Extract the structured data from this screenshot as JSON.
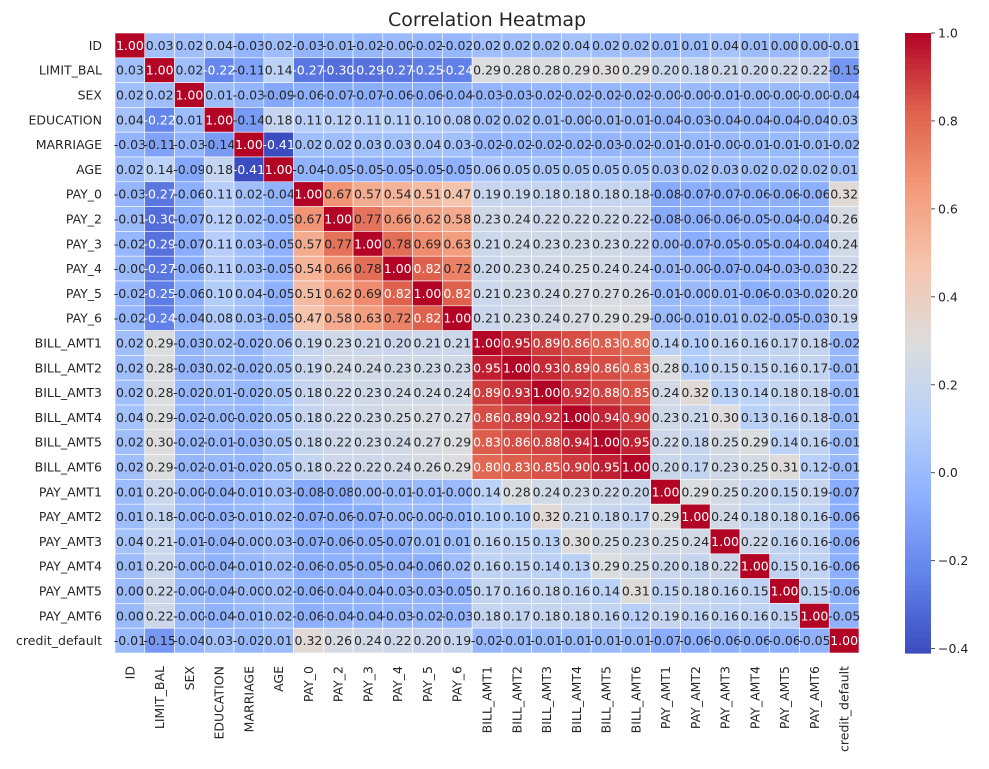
{
  "chart_data": {
    "type": "heatmap",
    "title": "Correlation Heatmap",
    "xlabel": "",
    "ylabel": "",
    "labels": [
      "ID",
      "LIMIT_BAL",
      "SEX",
      "EDUCATION",
      "MARRIAGE",
      "AGE",
      "PAY_0",
      "PAY_2",
      "PAY_3",
      "PAY_4",
      "PAY_5",
      "PAY_6",
      "BILL_AMT1",
      "BILL_AMT2",
      "BILL_AMT3",
      "BILL_AMT4",
      "BILL_AMT5",
      "BILL_AMT6",
      "PAY_AMT1",
      "PAY_AMT2",
      "PAY_AMT3",
      "PAY_AMT4",
      "PAY_AMT5",
      "PAY_AMT6",
      "credit_default"
    ],
    "cell_labels": [
      [
        "1.00",
        "0.03",
        "0.02",
        "0.04",
        "-0.03",
        "0.02",
        "-0.03",
        "-0.01",
        "-0.02",
        "-0.00",
        "-0.02",
        "-0.02",
        "0.02",
        "0.02",
        "0.02",
        "0.04",
        "0.02",
        "0.02",
        "0.01",
        "0.01",
        "0.04",
        "0.01",
        "0.00",
        "0.00",
        "-0.01"
      ],
      [
        "0.03",
        "1.00",
        "0.02",
        "-0.22",
        "-0.11",
        "0.14",
        "-0.27",
        "-0.30",
        "-0.29",
        "-0.27",
        "-0.25",
        "-0.24",
        "0.29",
        "0.28",
        "0.28",
        "0.29",
        "0.30",
        "0.29",
        "0.20",
        "0.18",
        "0.21",
        "0.20",
        "0.22",
        "0.22",
        "-0.15"
      ],
      [
        "0.02",
        "0.02",
        "1.00",
        "0.01",
        "-0.03",
        "-0.09",
        "-0.06",
        "-0.07",
        "-0.07",
        "-0.06",
        "-0.06",
        "-0.04",
        "-0.03",
        "-0.03",
        "-0.02",
        "-0.02",
        "-0.02",
        "-0.02",
        "-0.00",
        "-0.00",
        "-0.01",
        "-0.00",
        "-0.00",
        "-0.00",
        "-0.04"
      ],
      [
        "0.04",
        "-0.22",
        "0.01",
        "1.00",
        "-0.14",
        "0.18",
        "0.11",
        "0.12",
        "0.11",
        "0.11",
        "0.10",
        "0.08",
        "0.02",
        "0.02",
        "0.01",
        "-0.00",
        "-0.01",
        "-0.01",
        "-0.04",
        "-0.03",
        "-0.04",
        "-0.04",
        "-0.04",
        "-0.04",
        "0.03"
      ],
      [
        "-0.03",
        "-0.11",
        "-0.03",
        "-0.14",
        "1.00",
        "-0.41",
        "0.02",
        "0.02",
        "0.03",
        "0.03",
        "0.04",
        "0.03",
        "-0.02",
        "-0.02",
        "-0.02",
        "-0.02",
        "-0.03",
        "-0.02",
        "-0.01",
        "-0.01",
        "-0.00",
        "-0.01",
        "-0.01",
        "-0.01",
        "-0.02"
      ],
      [
        "0.02",
        "0.14",
        "-0.09",
        "0.18",
        "-0.41",
        "1.00",
        "-0.04",
        "-0.05",
        "-0.05",
        "-0.05",
        "-0.05",
        "-0.05",
        "0.06",
        "0.05",
        "0.05",
        "0.05",
        "0.05",
        "0.05",
        "0.03",
        "0.02",
        "0.03",
        "0.02",
        "0.02",
        "0.02",
        "0.01"
      ],
      [
        "-0.03",
        "-0.27",
        "-0.06",
        "0.11",
        "0.02",
        "-0.04",
        "1.00",
        "0.67",
        "0.57",
        "0.54",
        "0.51",
        "0.47",
        "0.19",
        "0.19",
        "0.18",
        "0.18",
        "0.18",
        "0.18",
        "-0.08",
        "-0.07",
        "-0.07",
        "-0.06",
        "-0.06",
        "-0.06",
        "0.32"
      ],
      [
        "-0.01",
        "-0.30",
        "-0.07",
        "0.12",
        "0.02",
        "-0.05",
        "0.67",
        "1.00",
        "0.77",
        "0.66",
        "0.62",
        "0.58",
        "0.23",
        "0.24",
        "0.22",
        "0.22",
        "0.22",
        "0.22",
        "-0.08",
        "-0.06",
        "-0.06",
        "-0.05",
        "-0.04",
        "-0.04",
        "0.26"
      ],
      [
        "-0.02",
        "-0.29",
        "-0.07",
        "0.11",
        "0.03",
        "-0.05",
        "0.57",
        "0.77",
        "1.00",
        "0.78",
        "0.69",
        "0.63",
        "0.21",
        "0.24",
        "0.23",
        "0.23",
        "0.23",
        "0.22",
        "0.00",
        "-0.07",
        "-0.05",
        "-0.05",
        "-0.04",
        "-0.04",
        "0.24"
      ],
      [
        "-0.00",
        "-0.27",
        "-0.06",
        "0.11",
        "0.03",
        "-0.05",
        "0.54",
        "0.66",
        "0.78",
        "1.00",
        "0.82",
        "0.72",
        "0.20",
        "0.23",
        "0.24",
        "0.25",
        "0.24",
        "0.24",
        "-0.01",
        "-0.00",
        "-0.07",
        "-0.04",
        "-0.03",
        "-0.03",
        "0.22"
      ],
      [
        "-0.02",
        "-0.25",
        "-0.06",
        "0.10",
        "0.04",
        "-0.05",
        "0.51",
        "0.62",
        "0.69",
        "0.82",
        "1.00",
        "0.82",
        "0.21",
        "0.23",
        "0.24",
        "0.27",
        "0.27",
        "0.26",
        "-0.01",
        "-0.00",
        "0.01",
        "-0.06",
        "-0.03",
        "-0.02",
        "0.20"
      ],
      [
        "-0.02",
        "-0.24",
        "-0.04",
        "0.08",
        "0.03",
        "-0.05",
        "0.47",
        "0.58",
        "0.63",
        "0.72",
        "0.82",
        "1.00",
        "0.21",
        "0.23",
        "0.24",
        "0.27",
        "0.29",
        "0.29",
        "-0.00",
        "-0.01",
        "0.01",
        "0.02",
        "-0.05",
        "-0.03",
        "0.19"
      ],
      [
        "0.02",
        "0.29",
        "-0.03",
        "0.02",
        "-0.02",
        "0.06",
        "0.19",
        "0.23",
        "0.21",
        "0.20",
        "0.21",
        "0.21",
        "1.00",
        "0.95",
        "0.89",
        "0.86",
        "0.83",
        "0.80",
        "0.14",
        "0.10",
        "0.16",
        "0.16",
        "0.17",
        "0.18",
        "-0.02"
      ],
      [
        "0.02",
        "0.28",
        "-0.03",
        "0.02",
        "-0.02",
        "0.05",
        "0.19",
        "0.24",
        "0.24",
        "0.23",
        "0.23",
        "0.23",
        "0.95",
        "1.00",
        "0.93",
        "0.89",
        "0.86",
        "0.83",
        "0.28",
        "0.10",
        "0.15",
        "0.15",
        "0.16",
        "0.17",
        "-0.01"
      ],
      [
        "0.02",
        "0.28",
        "-0.02",
        "0.01",
        "-0.02",
        "0.05",
        "0.18",
        "0.22",
        "0.23",
        "0.24",
        "0.24",
        "0.24",
        "0.89",
        "0.93",
        "1.00",
        "0.92",
        "0.88",
        "0.85",
        "0.24",
        "0.32",
        "0.13",
        "0.14",
        "0.18",
        "0.18",
        "-0.01"
      ],
      [
        "0.04",
        "0.29",
        "-0.02",
        "-0.00",
        "-0.02",
        "0.05",
        "0.18",
        "0.22",
        "0.23",
        "0.25",
        "0.27",
        "0.27",
        "0.86",
        "0.89",
        "0.92",
        "1.00",
        "0.94",
        "0.90",
        "0.23",
        "0.21",
        "0.30",
        "0.13",
        "0.16",
        "0.18",
        "-0.01"
      ],
      [
        "0.02",
        "0.30",
        "-0.02",
        "-0.01",
        "-0.03",
        "0.05",
        "0.18",
        "0.22",
        "0.23",
        "0.24",
        "0.27",
        "0.29",
        "0.83",
        "0.86",
        "0.88",
        "0.94",
        "1.00",
        "0.95",
        "0.22",
        "0.18",
        "0.25",
        "0.29",
        "0.14",
        "0.16",
        "-0.01"
      ],
      [
        "0.02",
        "0.29",
        "-0.02",
        "-0.01",
        "-0.02",
        "0.05",
        "0.18",
        "0.22",
        "0.22",
        "0.24",
        "0.26",
        "0.29",
        "0.80",
        "0.83",
        "0.85",
        "0.90",
        "0.95",
        "1.00",
        "0.20",
        "0.17",
        "0.23",
        "0.25",
        "0.31",
        "0.12",
        "-0.01"
      ],
      [
        "0.01",
        "0.20",
        "-0.00",
        "-0.04",
        "-0.01",
        "0.03",
        "-0.08",
        "-0.08",
        "0.00",
        "-0.01",
        "-0.01",
        "-0.00",
        "0.14",
        "0.28",
        "0.24",
        "0.23",
        "0.22",
        "0.20",
        "1.00",
        "0.29",
        "0.25",
        "0.20",
        "0.15",
        "0.19",
        "-0.07"
      ],
      [
        "0.01",
        "0.18",
        "-0.00",
        "-0.03",
        "-0.01",
        "0.02",
        "-0.07",
        "-0.06",
        "-0.07",
        "-0.00",
        "-0.00",
        "-0.01",
        "0.10",
        "0.10",
        "0.32",
        "0.21",
        "0.18",
        "0.17",
        "0.29",
        "1.00",
        "0.24",
        "0.18",
        "0.18",
        "0.16",
        "-0.06"
      ],
      [
        "0.04",
        "0.21",
        "-0.01",
        "-0.04",
        "-0.00",
        "0.03",
        "-0.07",
        "-0.06",
        "-0.05",
        "-0.07",
        "0.01",
        "0.01",
        "0.16",
        "0.15",
        "0.13",
        "0.30",
        "0.25",
        "0.23",
        "0.25",
        "0.24",
        "1.00",
        "0.22",
        "0.16",
        "0.16",
        "-0.06"
      ],
      [
        "0.01",
        "0.20",
        "-0.00",
        "-0.04",
        "-0.01",
        "0.02",
        "-0.06",
        "-0.05",
        "-0.05",
        "-0.04",
        "-0.06",
        "0.02",
        "0.16",
        "0.15",
        "0.14",
        "0.13",
        "0.29",
        "0.25",
        "0.20",
        "0.18",
        "0.22",
        "1.00",
        "0.15",
        "0.16",
        "-0.06"
      ],
      [
        "0.00",
        "0.22",
        "-0.00",
        "-0.04",
        "-0.00",
        "0.02",
        "-0.06",
        "-0.04",
        "-0.04",
        "-0.03",
        "-0.03",
        "-0.05",
        "0.17",
        "0.16",
        "0.18",
        "0.16",
        "0.14",
        "0.31",
        "0.15",
        "0.18",
        "0.16",
        "0.15",
        "1.00",
        "0.15",
        "-0.06"
      ],
      [
        "0.00",
        "0.22",
        "-0.00",
        "-0.04",
        "-0.01",
        "0.02",
        "-0.06",
        "-0.04",
        "-0.04",
        "-0.03",
        "-0.02",
        "-0.03",
        "0.18",
        "0.17",
        "0.18",
        "0.18",
        "0.16",
        "0.12",
        "0.19",
        "0.16",
        "0.16",
        "0.16",
        "0.15",
        "1.00",
        "-0.05"
      ],
      [
        "-0.01",
        "-0.15",
        "-0.04",
        "0.03",
        "-0.02",
        "0.01",
        "0.32",
        "0.26",
        "0.24",
        "0.22",
        "0.20",
        "0.19",
        "-0.02",
        "-0.01",
        "-0.01",
        "-0.01",
        "-0.01",
        "-0.01",
        "-0.07",
        "-0.06",
        "-0.06",
        "-0.06",
        "-0.06",
        "-0.05",
        "1.00"
      ]
    ],
    "colormap": "coolwarm",
    "vmin": -0.41,
    "vmax": 1.0,
    "colorbar_ticks": [
      "1.0",
      "0.8",
      "0.6",
      "0.4",
      "0.2",
      "0.0",
      "−0.2",
      "−0.4"
    ],
    "annotations_shown": true,
    "grid_lines": true
  }
}
